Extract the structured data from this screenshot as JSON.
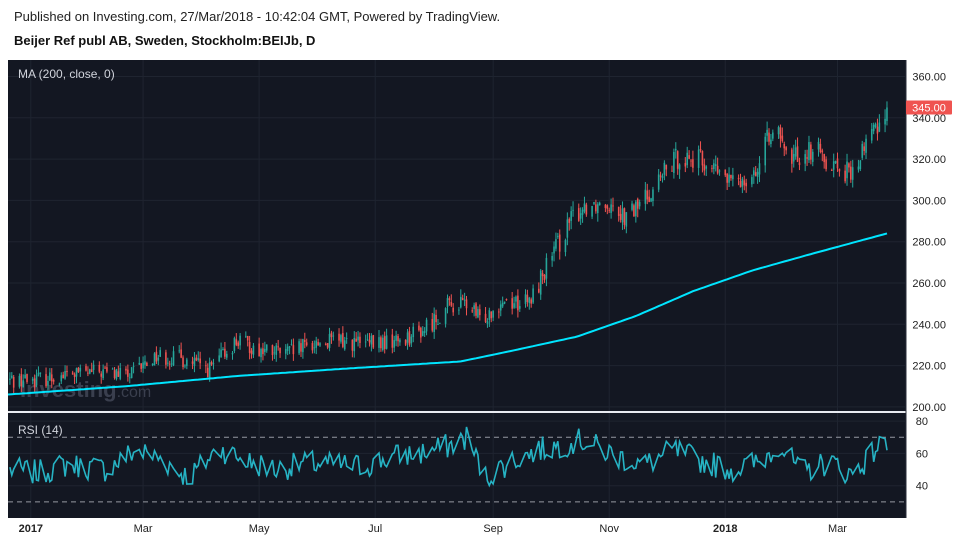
{
  "header": {
    "published": "Published on Investing.com, 27/Mar/2018 - 10:42:04 GMT, Powered by TradingView.",
    "symbol": "Beijer Ref publ AB, Sweden, Stockholm:BEIJb, D"
  },
  "colors": {
    "background": "#131722",
    "up": "#26a69a",
    "down": "#ef5350",
    "ma": "#00e5ff",
    "rsi": "#26b3c4",
    "price_badge": "#ef5350",
    "watermark": "#3a3f4e"
  },
  "watermark": {
    "brand": "Investing",
    "suffix": ".com"
  },
  "chart_data": [
    {
      "type": "candlestick",
      "title": "Beijer Ref publ AB, Sweden, Stockholm:BEIJb, D",
      "indicator_label": "MA (200, close, 0)",
      "y_ticks": [
        "360.00",
        "340.00",
        "320.00",
        "300.00",
        "280.00",
        "260.00",
        "240.00",
        "220.00",
        "200.00"
      ],
      "y_range": [
        200,
        360
      ],
      "last_price_label": "345.00",
      "last_price": 345,
      "x_ticks": [
        "2017",
        "Mar",
        "May",
        "Jul",
        "Sep",
        "Nov",
        "2018",
        "Mar"
      ],
      "x_range": [
        "2016-12-20",
        "2018-04-06"
      ],
      "grid": true,
      "close_anchors": [
        [
          "2016-12-22",
          213
        ],
        [
          "2017-01-10",
          214
        ],
        [
          "2017-01-25",
          216
        ],
        [
          "2017-02-08",
          217
        ],
        [
          "2017-02-22",
          215
        ],
        [
          "2017-03-08",
          225
        ],
        [
          "2017-03-22",
          223
        ],
        [
          "2017-04-05",
          218
        ],
        [
          "2017-04-19",
          232
        ],
        [
          "2017-05-03",
          227
        ],
        [
          "2017-05-17",
          226
        ],
        [
          "2017-05-31",
          231
        ],
        [
          "2017-06-14",
          232
        ],
        [
          "2017-06-28",
          230
        ],
        [
          "2017-07-12",
          232
        ],
        [
          "2017-07-26",
          237
        ],
        [
          "2017-08-09",
          249
        ],
        [
          "2017-08-18",
          250
        ],
        [
          "2017-08-25",
          242
        ],
        [
          "2017-09-06",
          252
        ],
        [
          "2017-09-20",
          250
        ],
        [
          "2017-09-29",
          268
        ],
        [
          "2017-10-13",
          292
        ],
        [
          "2017-10-20",
          298
        ],
        [
          "2017-11-03",
          300
        ],
        [
          "2017-11-10",
          291
        ],
        [
          "2017-11-24",
          306
        ],
        [
          "2017-12-08",
          322
        ],
        [
          "2017-12-22",
          318
        ],
        [
          "2018-01-05",
          308
        ],
        [
          "2018-01-19",
          316
        ],
        [
          "2018-01-26",
          338
        ],
        [
          "2018-02-02",
          320
        ],
        [
          "2018-02-16",
          325
        ],
        [
          "2018-03-02",
          316
        ],
        [
          "2018-03-09",
          312
        ],
        [
          "2018-03-16",
          328
        ],
        [
          "2018-03-23",
          338
        ],
        [
          "2018-03-27",
          345
        ]
      ],
      "ma200_anchors": [
        [
          "2016-12-20",
          206
        ],
        [
          "2017-02-20",
          210
        ],
        [
          "2017-04-20",
          215
        ],
        [
          "2017-06-15",
          218.5
        ],
        [
          "2017-08-15",
          222
        ],
        [
          "2017-09-15",
          228
        ],
        [
          "2017-10-15",
          234
        ],
        [
          "2017-11-15",
          244
        ],
        [
          "2017-12-15",
          256
        ],
        [
          "2018-01-15",
          266
        ],
        [
          "2018-02-15",
          274
        ],
        [
          "2018-03-27",
          284
        ]
      ]
    },
    {
      "type": "line",
      "title": "RSI (14)",
      "y_ticks": [
        "80",
        "60",
        "40"
      ],
      "y_range": [
        20,
        85
      ],
      "bands": [
        70,
        30
      ],
      "rsi_anchors": [
        [
          "2016-12-20",
          50
        ],
        [
          "2017-01-05",
          48
        ],
        [
          "2017-01-20",
          53
        ],
        [
          "2017-02-10",
          50
        ],
        [
          "2017-02-25",
          62
        ],
        [
          "2017-03-10",
          57
        ],
        [
          "2017-03-25",
          45
        ],
        [
          "2017-04-10",
          63
        ],
        [
          "2017-04-25",
          55
        ],
        [
          "2017-05-10",
          50
        ],
        [
          "2017-05-25",
          54
        ],
        [
          "2017-06-10",
          53
        ],
        [
          "2017-06-25",
          52
        ],
        [
          "2017-07-10",
          58
        ],
        [
          "2017-07-25",
          60
        ],
        [
          "2017-08-10",
          65
        ],
        [
          "2017-08-18",
          70
        ],
        [
          "2017-08-28",
          45
        ],
        [
          "2017-09-10",
          55
        ],
        [
          "2017-09-25",
          62
        ],
        [
          "2017-10-10",
          66
        ],
        [
          "2017-10-18",
          68
        ],
        [
          "2017-11-05",
          58
        ],
        [
          "2017-11-20",
          53
        ],
        [
          "2017-12-05",
          62
        ],
        [
          "2017-12-20",
          55
        ],
        [
          "2018-01-05",
          50
        ],
        [
          "2018-01-20",
          55
        ],
        [
          "2018-01-29",
          66
        ],
        [
          "2018-02-10",
          48
        ],
        [
          "2018-02-25",
          55
        ],
        [
          "2018-03-08",
          47
        ],
        [
          "2018-03-18",
          58
        ],
        [
          "2018-03-23",
          66
        ],
        [
          "2018-03-27",
          62
        ]
      ]
    }
  ]
}
